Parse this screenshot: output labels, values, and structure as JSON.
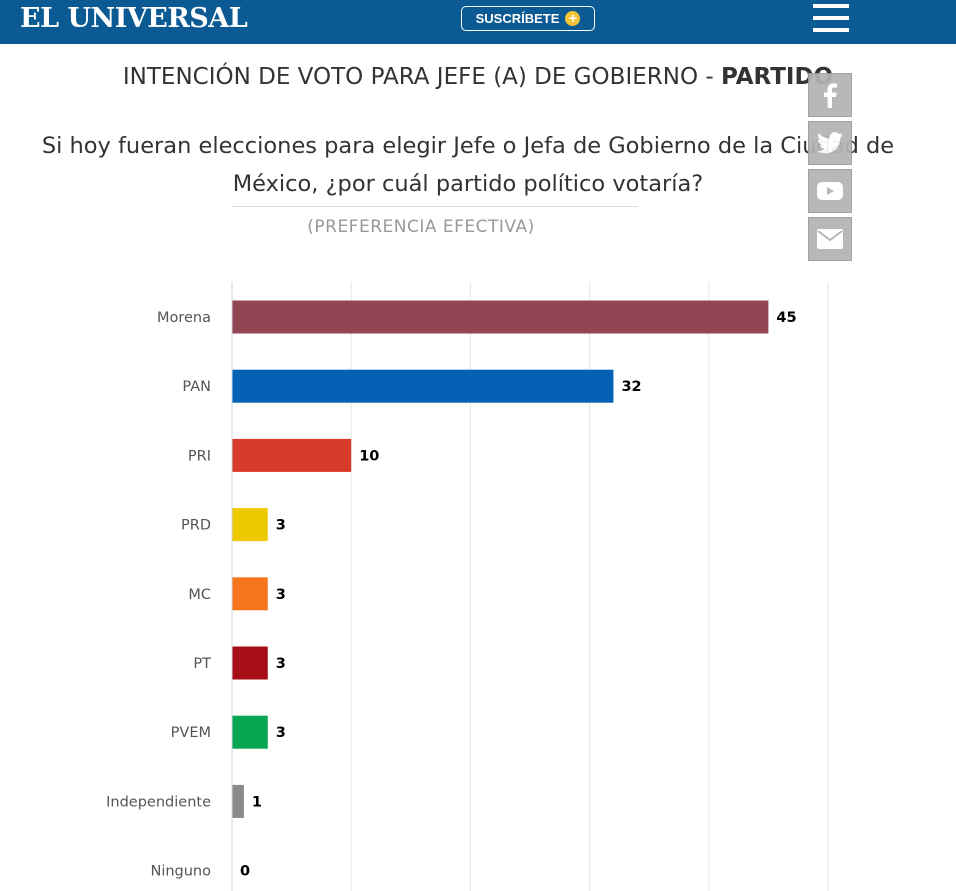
{
  "header": {
    "logo": "EL UNIVERSAL",
    "subscribe_label": "SUSCRÍBETE",
    "menu_icon": "hamburger-menu-icon",
    "bg_color": "#0c5a93"
  },
  "title": {
    "prefix": "INTENCIÓN DE VOTO PARA JEFE (A) DE GOBIERNO - ",
    "bold": "PARTIDO"
  },
  "question": "Si hoy fueran elecciones para elegir Jefe o Jefa de Gobierno de la Ciudad de México, ¿por cuál partido político votaría?",
  "subtitle": "(PREFERENCIA EFECTIVA)",
  "social": [
    "facebook-icon",
    "twitter-icon",
    "youtube-icon",
    "email-icon"
  ],
  "chart_data": {
    "type": "bar",
    "orientation": "horizontal",
    "categories": [
      "Morena",
      "PAN",
      "PRI",
      "PRD",
      "MC",
      "PT",
      "PVEM",
      "Independiente",
      "Ninguno"
    ],
    "values": [
      45,
      32,
      10,
      3,
      3,
      3,
      3,
      1,
      0
    ],
    "colors": [
      "#924654",
      "#0561b4",
      "#d93b2b",
      "#eec900",
      "#f7761d",
      "#a50e16",
      "#07a651",
      "#8b8b8b",
      "#8b8b8b"
    ],
    "xlim": [
      0,
      50
    ],
    "grid": true,
    "data_labels": true
  }
}
